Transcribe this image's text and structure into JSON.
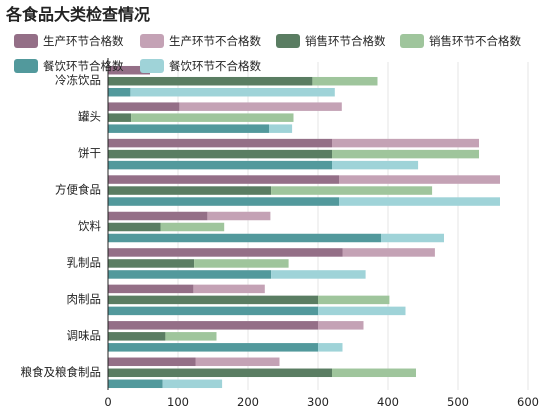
{
  "chart_data": {
    "type": "bar",
    "orientation": "horizontal",
    "title": "各食品大类检查情况",
    "categories": [
      "冷冻饮品",
      "罐头",
      "饼干",
      "方便食品",
      "饮料",
      "乳制品",
      "肉制品",
      "调味品",
      "粮食及粮食制品"
    ],
    "groups": [
      {
        "name": "生产环节",
        "stacks": [
          "生产环节合格数",
          "生产环节不合格数"
        ]
      },
      {
        "name": "销售环节",
        "stacks": [
          "销售环节合格数",
          "销售环节不合格数"
        ]
      },
      {
        "name": "餐饮环节",
        "stacks": [
          "餐饮环节合格数",
          "餐饮环节不合格数"
        ]
      }
    ],
    "series": [
      {
        "name": "生产环节合格数",
        "group": 0,
        "color": "#946f87",
        "values": [
          60,
          102,
          320,
          330,
          142,
          335,
          122,
          300,
          125
        ]
      },
      {
        "name": "生产环节不合格数",
        "group": 0,
        "color": "#c4a2b5",
        "values": [
          0,
          232,
          210,
          230,
          90,
          132,
          102,
          65,
          120
        ]
      },
      {
        "name": "销售环节合格数",
        "group": 1,
        "color": "#5a7d62",
        "values": [
          292,
          33,
          320,
          233,
          75,
          123,
          300,
          82,
          320
        ]
      },
      {
        "name": "销售环节不合格数",
        "group": 1,
        "color": "#9fc59c",
        "values": [
          93,
          232,
          210,
          230,
          91,
          135,
          102,
          73,
          120
        ]
      },
      {
        "name": "餐饮环节合格数",
        "group": 2,
        "color": "#52999c",
        "values": [
          32,
          230,
          320,
          330,
          390,
          233,
          300,
          300,
          78
        ]
      },
      {
        "name": "餐饮环节不合格数",
        "group": 2,
        "color": "#9fd3d8",
        "values": [
          292,
          33,
          123,
          230,
          90,
          135,
          125,
          35,
          85
        ]
      }
    ],
    "xlim": [
      0,
      600
    ],
    "xticks": [
      "0",
      "100",
      "200",
      "300",
      "400",
      "500",
      "600"
    ],
    "grid": true,
    "legend": "top"
  }
}
